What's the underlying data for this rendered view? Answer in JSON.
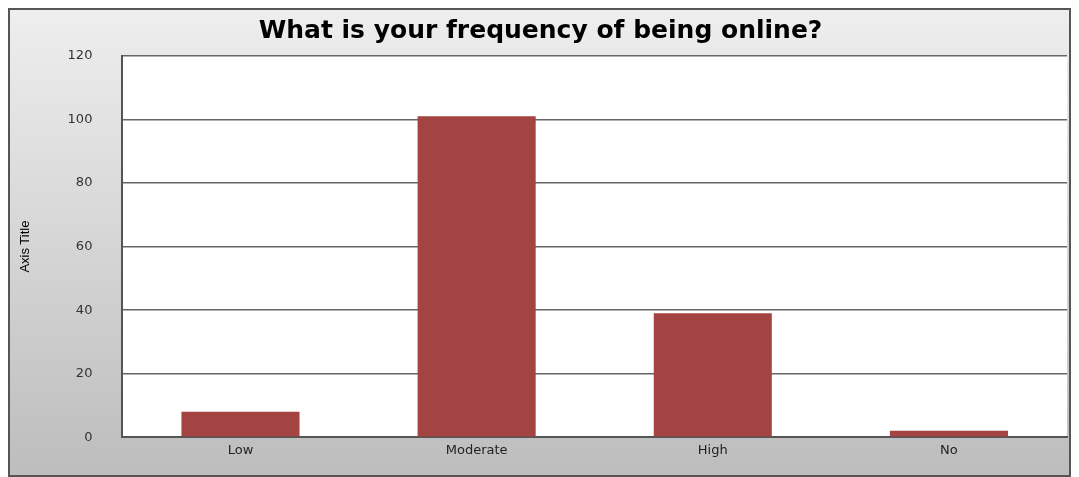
{
  "chart_data": {
    "type": "bar",
    "title": "What is your frequency of being online?",
    "ylabel": "Axis Title",
    "categories": [
      "Low",
      "Moderate",
      "High",
      "No"
    ],
    "values": [
      8,
      101,
      39,
      2
    ],
    "color": "#a34342",
    "ylim": [
      0,
      120
    ],
    "yticks": [
      0,
      20,
      40,
      60,
      80,
      100,
      120
    ],
    "grid": "y",
    "legend": false
  }
}
